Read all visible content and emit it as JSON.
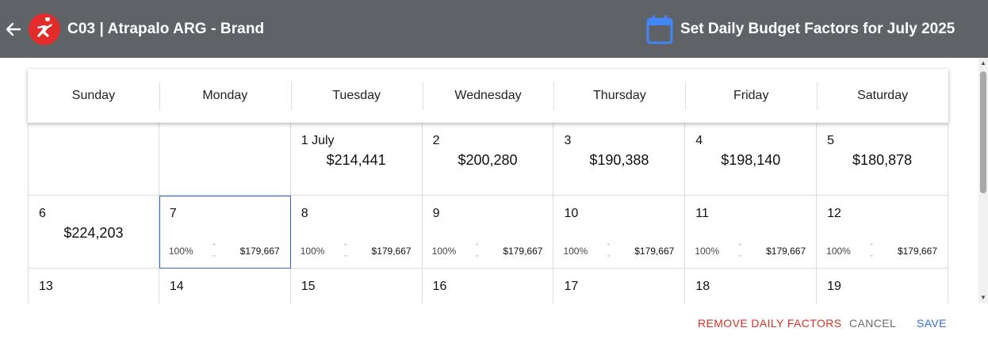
{
  "header": {
    "back_icon": "arrow-left-icon",
    "logo_icon": "runner-logo-icon",
    "app_title": "C03 | Atrapalo ARG - Brand",
    "calendar_icon": "calendar-icon",
    "dialog_title": "Set Daily Budget Factors for July 2025",
    "colors": {
      "bar": "#5f6368",
      "logo": "#e22c2c",
      "calendar": "#4285f4"
    }
  },
  "weekdays": [
    "Sunday",
    "Monday",
    "Tuesday",
    "Wednesday",
    "Thursday",
    "Friday",
    "Saturday"
  ],
  "weeks": [
    [
      {
        "empty": true
      },
      {
        "empty": true
      },
      {
        "day": "1 July",
        "amount": "$214,441"
      },
      {
        "day": "2",
        "amount": "$200,280"
      },
      {
        "day": "3",
        "amount": "$190,388"
      },
      {
        "day": "4",
        "amount": "$198,140"
      },
      {
        "day": "5",
        "amount": "$180,878"
      }
    ],
    [
      {
        "day": "6",
        "amount": "$224,203"
      },
      {
        "day": "7",
        "factor": "100%",
        "factor_amount": "$179,667",
        "selected": true
      },
      {
        "day": "8",
        "factor": "100%",
        "factor_amount": "$179,667"
      },
      {
        "day": "9",
        "factor": "100%",
        "factor_amount": "$179,667"
      },
      {
        "day": "10",
        "factor": "100%",
        "factor_amount": "$179,667"
      },
      {
        "day": "11",
        "factor": "100%",
        "factor_amount": "$179,667"
      },
      {
        "day": "12",
        "factor": "100%",
        "factor_amount": "$179,667"
      }
    ],
    [
      {
        "day": "13"
      },
      {
        "day": "14"
      },
      {
        "day": "15"
      },
      {
        "day": "16"
      },
      {
        "day": "17"
      },
      {
        "day": "18"
      },
      {
        "day": "19"
      }
    ]
  ],
  "actions": {
    "remove_label": "REMOVE DAILY FACTORS",
    "cancel_label": "CANCEL",
    "save_label": "SAVE",
    "colors": {
      "remove": "#d93025",
      "cancel": "#6b6b6b",
      "save": "#2f6fd6",
      "selected_outline": "#3367d6"
    }
  }
}
